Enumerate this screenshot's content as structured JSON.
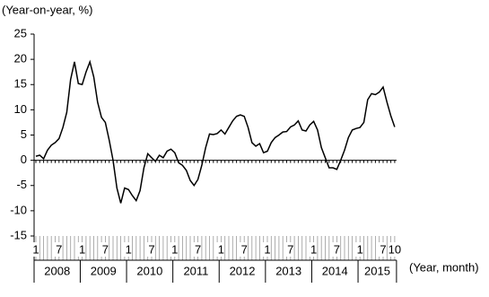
{
  "chart_data": {
    "type": "line",
    "y_unit_label": "(Year-on-year, %)",
    "x_unit_label": "(Year, month)",
    "categories": [
      "1",
      null,
      null,
      null,
      null,
      null,
      "7",
      null,
      null,
      null,
      null,
      null,
      "1",
      null,
      null,
      null,
      null,
      null,
      "7",
      null,
      null,
      null,
      null,
      null,
      "1",
      null,
      null,
      null,
      null,
      null,
      "7",
      null,
      null,
      null,
      null,
      null,
      "1",
      null,
      null,
      null,
      null,
      null,
      "7",
      null,
      null,
      null,
      null,
      null,
      "1",
      null,
      null,
      null,
      null,
      null,
      "7",
      null,
      null,
      null,
      null,
      null,
      "1",
      null,
      null,
      null,
      null,
      null,
      "7",
      null,
      null,
      null,
      null,
      null,
      "1",
      null,
      null,
      null,
      null,
      null,
      "7",
      null,
      null,
      null,
      null,
      null,
      "1",
      null,
      null,
      null,
      null,
      null,
      "7",
      null,
      null,
      "10"
    ],
    "years": [
      "2008",
      "2009",
      "2010",
      "2011",
      "2012",
      "2013",
      "2014",
      "2015"
    ],
    "values": [
      0.8,
      1,
      0.3,
      2,
      3,
      3.5,
      4.3,
      6.5,
      9.5,
      16,
      19.5,
      15.2,
      15,
      17.5,
      19.5,
      16.5,
      11.5,
      8.5,
      7.5,
      4,
      0,
      -5.5,
      -8.5,
      -5.5,
      -5.8,
      -7,
      -8,
      -6,
      -1.5,
      1.3,
      0.5,
      -0.2,
      1,
      0.5,
      1.8,
      2.2,
      1.5,
      -0.5,
      -1,
      -2,
      -4,
      -5,
      -3.8,
      -1,
      2.5,
      5.2,
      5.1,
      5.3,
      6,
      5.2,
      6.5,
      7.8,
      8.7,
      9,
      8.7,
      6.5,
      3.5,
      2.8,
      3.3,
      1.5,
      1.8,
      3.5,
      4.5,
      5,
      5.6,
      5.7,
      6.6,
      7,
      7.8,
      6,
      5.8,
      7,
      7.7,
      6,
      2.5,
      0.5,
      -1.5,
      -1.5,
      -1.8,
      0,
      2,
      4.5,
      6,
      6.3,
      6.5,
      7.5,
      12,
      13.2,
      13,
      13.5,
      14.5,
      11.5,
      8.8,
      6.6
    ],
    "color": "#000000",
    "ylim": [
      -15,
      25
    ],
    "yticks": [
      -15,
      -10,
      -5,
      0,
      5,
      10,
      15,
      20,
      25
    ]
  }
}
